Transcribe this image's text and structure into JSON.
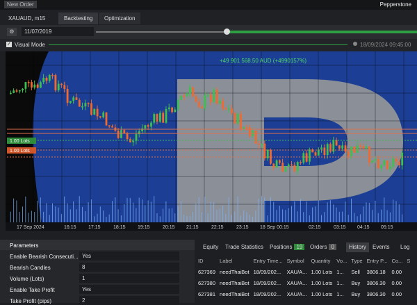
{
  "topbar": {
    "new_order": "New Order",
    "broker": "Pepperstone"
  },
  "tabs": {
    "symbol": "XAUAUD, m15",
    "items": [
      "Backtesting",
      "Optimization"
    ]
  },
  "toolbar": {
    "start_date": "11/07/2019",
    "visual_mode": "Visual Mode",
    "current_time": "18/09/2024 09:45:00"
  },
  "chart": {
    "profit": "+49 901 568.50 AUD (+4990157%)",
    "lot_labels": [
      "1.00 Lots",
      "1.00 Lots"
    ],
    "x_labels": [
      "17 Sep 2024",
      "16:15",
      "17:15",
      "18:15",
      "19:15",
      "20:15",
      "21:15",
      "22:15",
      "23:15",
      "18 Sep 00:15",
      "02:15",
      "03:15",
      "04:15",
      "05:15"
    ]
  },
  "parameters": {
    "title": "Parameters",
    "rows": [
      [
        "Enable Bearish Consecuti...",
        "Yes"
      ],
      [
        "Bearish Candles",
        "8"
      ],
      [
        "Volume (Lots)",
        "1"
      ],
      [
        "Enable Take Profit",
        "Yes"
      ],
      [
        "Take Profit (pips)",
        "2"
      ]
    ]
  },
  "results": {
    "tabs": [
      "Equity",
      "Trade Statistics",
      "Positions",
      "Orders",
      "History",
      "Events",
      "Log"
    ],
    "badges": {
      "positions": "19",
      "orders": "0"
    },
    "table": {
      "header": [
        "ID",
        "Label",
        "Entry Time...",
        "Symbol",
        "Quantity",
        "Vo...",
        "Type",
        "Entry P...",
        "Co...",
        "S"
      ],
      "rows": [
        [
          "627369",
          "needThaiBot",
          "18/09/202...",
          "XAU/A...",
          "1.00 Lots",
          "1...",
          "Sell",
          "3806.18",
          "0.00"
        ],
        [
          "627380",
          "needThaiBot",
          "18/09/202...",
          "XAU/A...",
          "1.00 Lots",
          "1...",
          "Buy",
          "3806.30",
          "0.00"
        ],
        [
          "627381",
          "needThaiBot",
          "18/09/202...",
          "XAU/A...",
          "1.00 Lots",
          "1...",
          "Buy",
          "3806.30",
          "0.00"
        ]
      ]
    }
  }
}
